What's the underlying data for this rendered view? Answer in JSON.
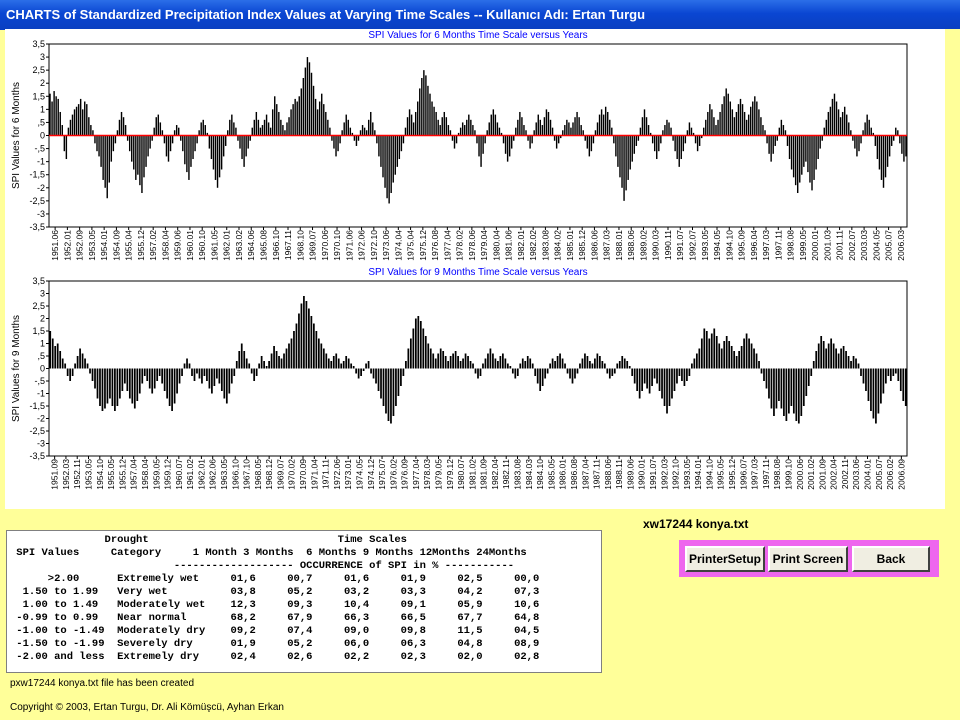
{
  "window": {
    "title": "CHARTS of Standardized Precipitation Index Values at Varying Time Scales -- Kullanıcı Adı: Ertan Turgu"
  },
  "file_label": "xw17244 konya.txt",
  "buttons": {
    "printer_setup": "PrinterSetup",
    "print_screen": "Print Screen",
    "back": "Back"
  },
  "status_text": "pxw17244 konya.txt file has been created",
  "copyright": "Copyright © 2003, Ertan Turgu, Dr. Ali Kömüşcü, Ayhan Erkan",
  "colors": {
    "background": "#ffff99",
    "zero_line": "#ff0000",
    "bars": "#000000",
    "title_text": "#0000ff",
    "button_bar": "#ee66ee"
  },
  "table": {
    "header1": "               Drought                              Time Scales",
    "header2": " SPI Values     Category     1 Month 3 Months  6 Months 9 Months 12Months 24Months",
    "header3": "                          ------------------- OCCURRENCE of SPI in % -----------",
    "rows": [
      "      >2.00      Extremely wet     01,6     00,7     01,6     01,9     02,5     00,0",
      "  1.50 to 1.99   Very wet          03,8     05,2     03,2     03,3     04,2     07,3",
      "  1.00 to 1.49   Moderately wet    12,3     09,3     10,4     09,1     05,9     10,6",
      " -0.99 to 0.99   Near normal       68,2     67,9     66,3     66,5     67,7     64,8",
      " -1.00 to -1.49  Moderately dry    09,2     07,4     09,0     09,8     11,5     04,5",
      " -1.50 to -1.99  Severely dry      01,9     05,2     06,0     06,3     04,8     08,9",
      " -2.00 and less  Extremely dry     02,4     02,6     02,2     02,3     02,0     02,8"
    ]
  },
  "chart_data": [
    {
      "type": "bar",
      "title": "SPI Values for 6 Months Time Scale versus Years",
      "ylabel": "SPI Values for 6 Months",
      "ylim": [
        -3.5,
        3.5
      ],
      "yticks": [
        "3,5",
        "3",
        "2,5",
        "2",
        "1,5",
        "1",
        ",5",
        "0",
        "-,5",
        "-1",
        "-1,5",
        "-2",
        "-2,5",
        "-3",
        "-3,5"
      ],
      "x_tick_labels": [
        "1951.06",
        "1952.01",
        "1952.09",
        "1953.05",
        "1954.01",
        "1954.09",
        "1955.04",
        "1955.12",
        "1957.02",
        "1958.04",
        "1959.06",
        "1960.01",
        "1960.10",
        "1961.05",
        "1962.01",
        "1963.02",
        "1964.06",
        "1965.08",
        "1966.10",
        "1967.11",
        "1968.10",
        "1969.07",
        "1970.06",
        "1970.10",
        "1971.06",
        "1972.06",
        "1972.10",
        "1973.06",
        "1974.04",
        "1975.04",
        "1975.12",
        "1976.08",
        "1977.04",
        "1978.02",
        "1978.06",
        "1979.04",
        "1980.04",
        "1981.06",
        "1982.01",
        "1982.02",
        "1983.08",
        "1984.02",
        "1985.01",
        "1985.12",
        "1986.06",
        "1987.03",
        "1988.01",
        "1988.06",
        "1989.02",
        "1990.03",
        "1990.11",
        "1991.07",
        "1992.07",
        "1993.05",
        "1994.05",
        "1994.10",
        "1995.09",
        "1996.04",
        "1997.03",
        "1997.11",
        "1998.08",
        "1999.05",
        "2000.01",
        "2001.03",
        "2001.11",
        "2002.07",
        "2003.03",
        "2004.05",
        "2005.07",
        "2006.03"
      ],
      "values": [
        1.6,
        1.3,
        1.7,
        1.5,
        1.4,
        0.9,
        0.4,
        -0.6,
        -0.9,
        0.3,
        0.6,
        0.8,
        1.0,
        1.1,
        1.2,
        1.4,
        1.0,
        1.3,
        1.2,
        0.7,
        0.4,
        0.2,
        -0.3,
        -0.6,
        -0.8,
        -1.2,
        -1.7,
        -2.0,
        -2.4,
        -1.8,
        -1.0,
        -0.6,
        -0.3,
        0.2,
        0.6,
        0.9,
        0.7,
        0.4,
        -0.2,
        -0.6,
        -1.0,
        -1.3,
        -1.7,
        -1.5,
        -1.9,
        -2.2,
        -1.6,
        -1.2,
        -0.8,
        -0.5,
        -0.2,
        0.3,
        0.7,
        0.8,
        0.5,
        0.2,
        -0.3,
        -0.8,
        -1.0,
        -0.6,
        -0.3,
        0.2,
        0.4,
        0.3,
        -0.2,
        -0.6,
        -1.1,
        -1.4,
        -1.7,
        -1.2,
        -0.9,
        -0.6,
        -0.3,
        0.2,
        0.5,
        0.6,
        0.4,
        0.1,
        -0.5,
        -0.9,
        -1.3,
        -1.7,
        -2.0,
        -1.6,
        -1.3,
        -0.8,
        -0.4,
        0.2,
        0.6,
        0.8,
        0.5,
        0.3,
        -0.2,
        -0.5,
        -0.9,
        -1.2,
        -0.8,
        -0.5,
        -0.2,
        0.3,
        0.6,
        0.9,
        0.6,
        0.3,
        0.4,
        0.6,
        0.8,
        0.5,
        0.3,
        1.0,
        1.5,
        1.2,
        0.9,
        0.6,
        0.4,
        0.2,
        0.5,
        0.7,
        1.0,
        1.2,
        1.4,
        1.3,
        1.5,
        1.8,
        2.2,
        2.6,
        3.0,
        2.8,
        2.4,
        1.9,
        1.4,
        1.0,
        1.3,
        1.6,
        1.2,
        0.9,
        0.6,
        0.3,
        -0.2,
        -0.5,
        -0.8,
        -0.6,
        -0.3,
        0.2,
        0.5,
        0.8,
        0.6,
        0.3,
        0.1,
        -0.2,
        -0.4,
        -0.2,
        0.2,
        0.4,
        0.3,
        0.2,
        0.6,
        0.9,
        0.5,
        0.2,
        -0.3,
        -0.8,
        -1.2,
        -1.6,
        -2.0,
        -2.4,
        -2.6,
        -2.2,
        -1.8,
        -1.5,
        -1.2,
        -0.9,
        -0.6,
        -0.3,
        0.3,
        0.7,
        1.0,
        0.8,
        0.5,
        0.9,
        1.3,
        1.8,
        2.2,
        2.5,
        2.3,
        1.9,
        1.6,
        1.3,
        1.1,
        0.9,
        0.6,
        0.4,
        0.7,
        0.9,
        0.7,
        0.4,
        0.2,
        -0.2,
        -0.5,
        -0.3,
        0.1,
        0.3,
        0.5,
        0.4,
        0.6,
        0.8,
        0.6,
        0.4,
        0.2,
        -0.3,
        -0.8,
        -1.2,
        -0.7,
        -0.3,
        0.2,
        0.5,
        0.8,
        1.0,
        0.8,
        0.5,
        0.3,
        0.1,
        -0.3,
        -0.7,
        -1.0,
        -0.8,
        -0.5,
        -0.2,
        0.3,
        0.6,
        0.9,
        0.7,
        0.4,
        0.2,
        -0.2,
        -0.5,
        -0.3,
        0.2,
        0.5,
        0.8,
        0.6,
        0.4,
        0.7,
        1.0,
        0.9,
        0.6,
        0.3,
        -0.2,
        -0.5,
        -0.3,
        -0.1,
        0.2,
        0.4,
        0.6,
        0.5,
        0.3,
        0.5,
        0.7,
        0.9,
        0.7,
        0.4,
        0.2,
        -0.2,
        -0.5,
        -0.8,
        -0.6,
        -0.3,
        0.2,
        0.5,
        0.8,
        1.0,
        0.8,
        1.1,
        0.9,
        0.6,
        0.3,
        -0.3,
        -0.8,
        -1.2,
        -1.6,
        -2.0,
        -2.5,
        -2.1,
        -1.7,
        -1.3,
        -1.0,
        -0.7,
        -0.4,
        -0.2,
        0.3,
        0.7,
        1.0,
        0.7,
        0.4,
        0.1,
        -0.3,
        -0.6,
        -0.9,
        -0.6,
        -0.3,
        0.2,
        0.4,
        0.6,
        0.5,
        0.3,
        -0.2,
        -0.6,
        -0.9,
        -1.2,
        -0.9,
        -0.6,
        -0.3,
        0.2,
        0.5,
        0.3,
        0.1,
        -0.3,
        -0.6,
        -0.4,
        -0.1,
        0.3,
        0.6,
        0.9,
        1.2,
        1.0,
        0.7,
        0.4,
        0.6,
        0.9,
        1.2,
        1.5,
        1.8,
        1.6,
        1.3,
        1.0,
        0.7,
        0.9,
        1.2,
        1.4,
        1.2,
        0.9,
        0.6,
        0.8,
        1.1,
        1.3,
        1.5,
        1.3,
        1.0,
        0.7,
        0.4,
        0.2,
        -0.3,
        -0.7,
        -1.0,
        -0.7,
        -0.4,
        -0.2,
        0.3,
        0.6,
        0.4,
        0.2,
        -0.4,
        -0.9,
        -1.3,
        -1.6,
        -1.9,
        -2.2,
        -1.8,
        -1.5,
        -1.2,
        -1.0,
        -1.4,
        -1.8,
        -2.1,
        -1.7,
        -1.3,
        -0.9,
        -0.5,
        -0.2,
        0.3,
        0.6,
        0.9,
        1.1,
        1.4,
        1.6,
        1.3,
        1.0,
        0.7,
        0.9,
        1.1,
        0.8,
        0.5,
        0.2,
        -0.2,
        -0.5,
        -0.8,
        -0.6,
        -0.3,
        0.2,
        0.5,
        0.8,
        0.6,
        0.3,
        0.1,
        -0.4,
        -0.9,
        -1.3,
        -1.7,
        -2.0,
        -1.6,
        -1.2,
        -0.8,
        -0.4,
        -0.2,
        0.3,
        0.2,
        -0.3,
        -0.7,
        -1.0,
        -0.8
      ]
    },
    {
      "type": "bar",
      "title": "SPI Values for 9 Months Time Scale versus Years",
      "ylabel": "SPI Values for 9 Months",
      "ylim": [
        -3.5,
        3.5
      ],
      "yticks": [
        "3,5",
        "3",
        "2,5",
        "2",
        "1,5",
        "1",
        ",5",
        "0",
        "-,5",
        "-1",
        "-1,5",
        "-2",
        "-2,5",
        "-3",
        "-3,5"
      ],
      "x_tick_labels": [
        "1951.09",
        "1952.03",
        "1952.11",
        "1953.05",
        "1954.10",
        "1955.05",
        "1955.12",
        "1957.04",
        "1958.04",
        "1959.05",
        "1959.12",
        "1960.07",
        "1961.02",
        "1962.01",
        "1962.06",
        "1963.05",
        "1966.10",
        "1967.10",
        "1968.05",
        "1968.12",
        "1969.07",
        "1970.02",
        "1970.09",
        "1971.04",
        "1971.11",
        "1972.06",
        "1973.01",
        "1974.05",
        "1974.12",
        "1975.07",
        "1976.02",
        "1976.09",
        "1977.04",
        "1978.03",
        "1979.05",
        "1979.12",
        "1980.07",
        "1981.02",
        "1981.09",
        "1982.04",
        "1982.11",
        "1983.08",
        "1984.03",
        "1984.10",
        "1985.05",
        "1986.01",
        "1986.08",
        "1987.04",
        "1987.11",
        "1988.06",
        "1988.11",
        "1989.06",
        "1990.01",
        "1991.07",
        "1992.03",
        "1992.10",
        "1993.05",
        "1994.01",
        "1994.10",
        "1995.05",
        "1995.12",
        "1996.07",
        "1997.03",
        "1997.11",
        "1998.08",
        "1999.10",
        "2000.06",
        "2001.02",
        "2001.09",
        "2002.04",
        "2002.11",
        "2003.06",
        "2004.01",
        "2005.07",
        "2006.02",
        "2006.09"
      ],
      "values": [
        1.5,
        1.2,
        0.9,
        1.0,
        0.7,
        0.4,
        0.2,
        -0.3,
        -0.5,
        -0.3,
        0.2,
        0.5,
        0.8,
        0.6,
        0.4,
        0.2,
        -0.2,
        -0.5,
        -0.8,
        -1.2,
        -1.5,
        -1.7,
        -1.6,
        -1.4,
        -1.2,
        -1.5,
        -1.7,
        -1.5,
        -1.2,
        -0.9,
        -0.6,
        -0.9,
        -1.2,
        -1.4,
        -1.6,
        -1.3,
        -1.0,
        -0.6,
        -0.3,
        -0.5,
        -0.8,
        -1.0,
        -0.8,
        -0.5,
        -0.3,
        -0.6,
        -0.9,
        -1.2,
        -1.5,
        -1.7,
        -1.4,
        -1.0,
        -0.6,
        -0.3,
        0.2,
        0.4,
        0.2,
        -0.3,
        -0.5,
        -0.2,
        -0.4,
        -0.6,
        -0.3,
        -0.5,
        -0.8,
        -1.0,
        -0.7,
        -0.4,
        -0.6,
        -0.9,
        -1.2,
        -1.4,
        -1.0,
        -0.6,
        -0.3,
        0.3,
        0.7,
        1.0,
        0.7,
        0.4,
        0.2,
        -0.2,
        -0.5,
        -0.3,
        0.2,
        0.5,
        0.3,
        0.1,
        0.3,
        0.6,
        0.9,
        0.7,
        0.5,
        0.4,
        0.6,
        0.8,
        1.0,
        1.2,
        1.5,
        1.8,
        2.2,
        2.6,
        2.9,
        2.7,
        2.4,
        2.1,
        1.8,
        1.5,
        1.2,
        1.0,
        0.8,
        0.6,
        0.4,
        0.3,
        0.5,
        0.6,
        0.4,
        0.2,
        0.3,
        0.5,
        0.4,
        0.2,
        0.1,
        -0.2,
        -0.4,
        -0.3,
        -0.1,
        0.2,
        0.3,
        -0.2,
        -0.4,
        -0.6,
        -0.9,
        -1.2,
        -1.5,
        -1.8,
        -2.1,
        -2.2,
        -1.9,
        -1.5,
        -1.1,
        -0.7,
        -0.3,
        0.3,
        0.8,
        1.2,
        1.6,
        2.0,
        2.1,
        1.9,
        1.6,
        1.3,
        1.0,
        0.8,
        0.6,
        0.4,
        0.6,
        0.8,
        0.7,
        0.5,
        0.3,
        0.5,
        0.6,
        0.7,
        0.5,
        0.3,
        0.4,
        0.6,
        0.5,
        0.3,
        0.2,
        -0.2,
        -0.4,
        -0.3,
        0.2,
        0.4,
        0.6,
        0.8,
        0.6,
        0.4,
        0.3,
        0.5,
        0.6,
        0.4,
        0.2,
        0.1,
        -0.2,
        -0.4,
        -0.3,
        0.2,
        0.4,
        0.3,
        0.5,
        0.4,
        0.2,
        -0.3,
        -0.6,
        -0.9,
        -0.7,
        -0.4,
        -0.2,
        0.2,
        0.4,
        0.3,
        0.5,
        0.6,
        0.4,
        0.2,
        -0.2,
        -0.4,
        -0.6,
        -0.4,
        -0.2,
        0.2,
        0.4,
        0.6,
        0.5,
        0.3,
        0.2,
        0.4,
        0.6,
        0.5,
        0.3,
        0.2,
        -0.2,
        -0.4,
        -0.3,
        -0.2,
        0.2,
        0.3,
        0.5,
        0.4,
        0.3,
        0.1,
        -0.3,
        -0.6,
        -0.9,
        -1.2,
        -0.9,
        -0.6,
        -0.8,
        -1.0,
        -0.7,
        -0.4,
        -0.6,
        -0.9,
        -1.2,
        -1.5,
        -1.8,
        -1.5,
        -1.2,
        -0.9,
        -0.6,
        -0.3,
        -0.5,
        -0.7,
        -0.5,
        -0.3,
        0.2,
        0.4,
        0.6,
        0.8,
        1.2,
        1.6,
        1.5,
        1.2,
        1.4,
        1.6,
        1.3,
        1.0,
        0.8,
        1.1,
        1.3,
        1.1,
        0.9,
        0.7,
        0.5,
        0.7,
        0.9,
        1.2,
        1.4,
        1.2,
        1.0,
        0.8,
        0.6,
        0.3,
        -0.2,
        -0.5,
        -0.8,
        -1.2,
        -1.6,
        -1.9,
        -1.6,
        -1.3,
        -1.6,
        -1.9,
        -2.1,
        -1.8,
        -1.5,
        -1.8,
        -2.1,
        -2.2,
        -1.9,
        -1.5,
        -1.1,
        -0.7,
        -0.3,
        0.3,
        0.7,
        1.0,
        1.3,
        1.1,
        0.8,
        1.0,
        1.2,
        1.0,
        0.8,
        0.6,
        0.8,
        0.9,
        0.7,
        0.5,
        0.3,
        0.5,
        0.4,
        0.2,
        -0.3,
        -0.6,
        -0.9,
        -1.3,
        -1.7,
        -2.0,
        -2.2,
        -1.8,
        -1.4,
        -1.0,
        -0.6,
        -0.3,
        -0.5,
        -0.3,
        -0.2,
        -0.5,
        -0.9,
        -1.3,
        -1.5
      ]
    }
  ]
}
